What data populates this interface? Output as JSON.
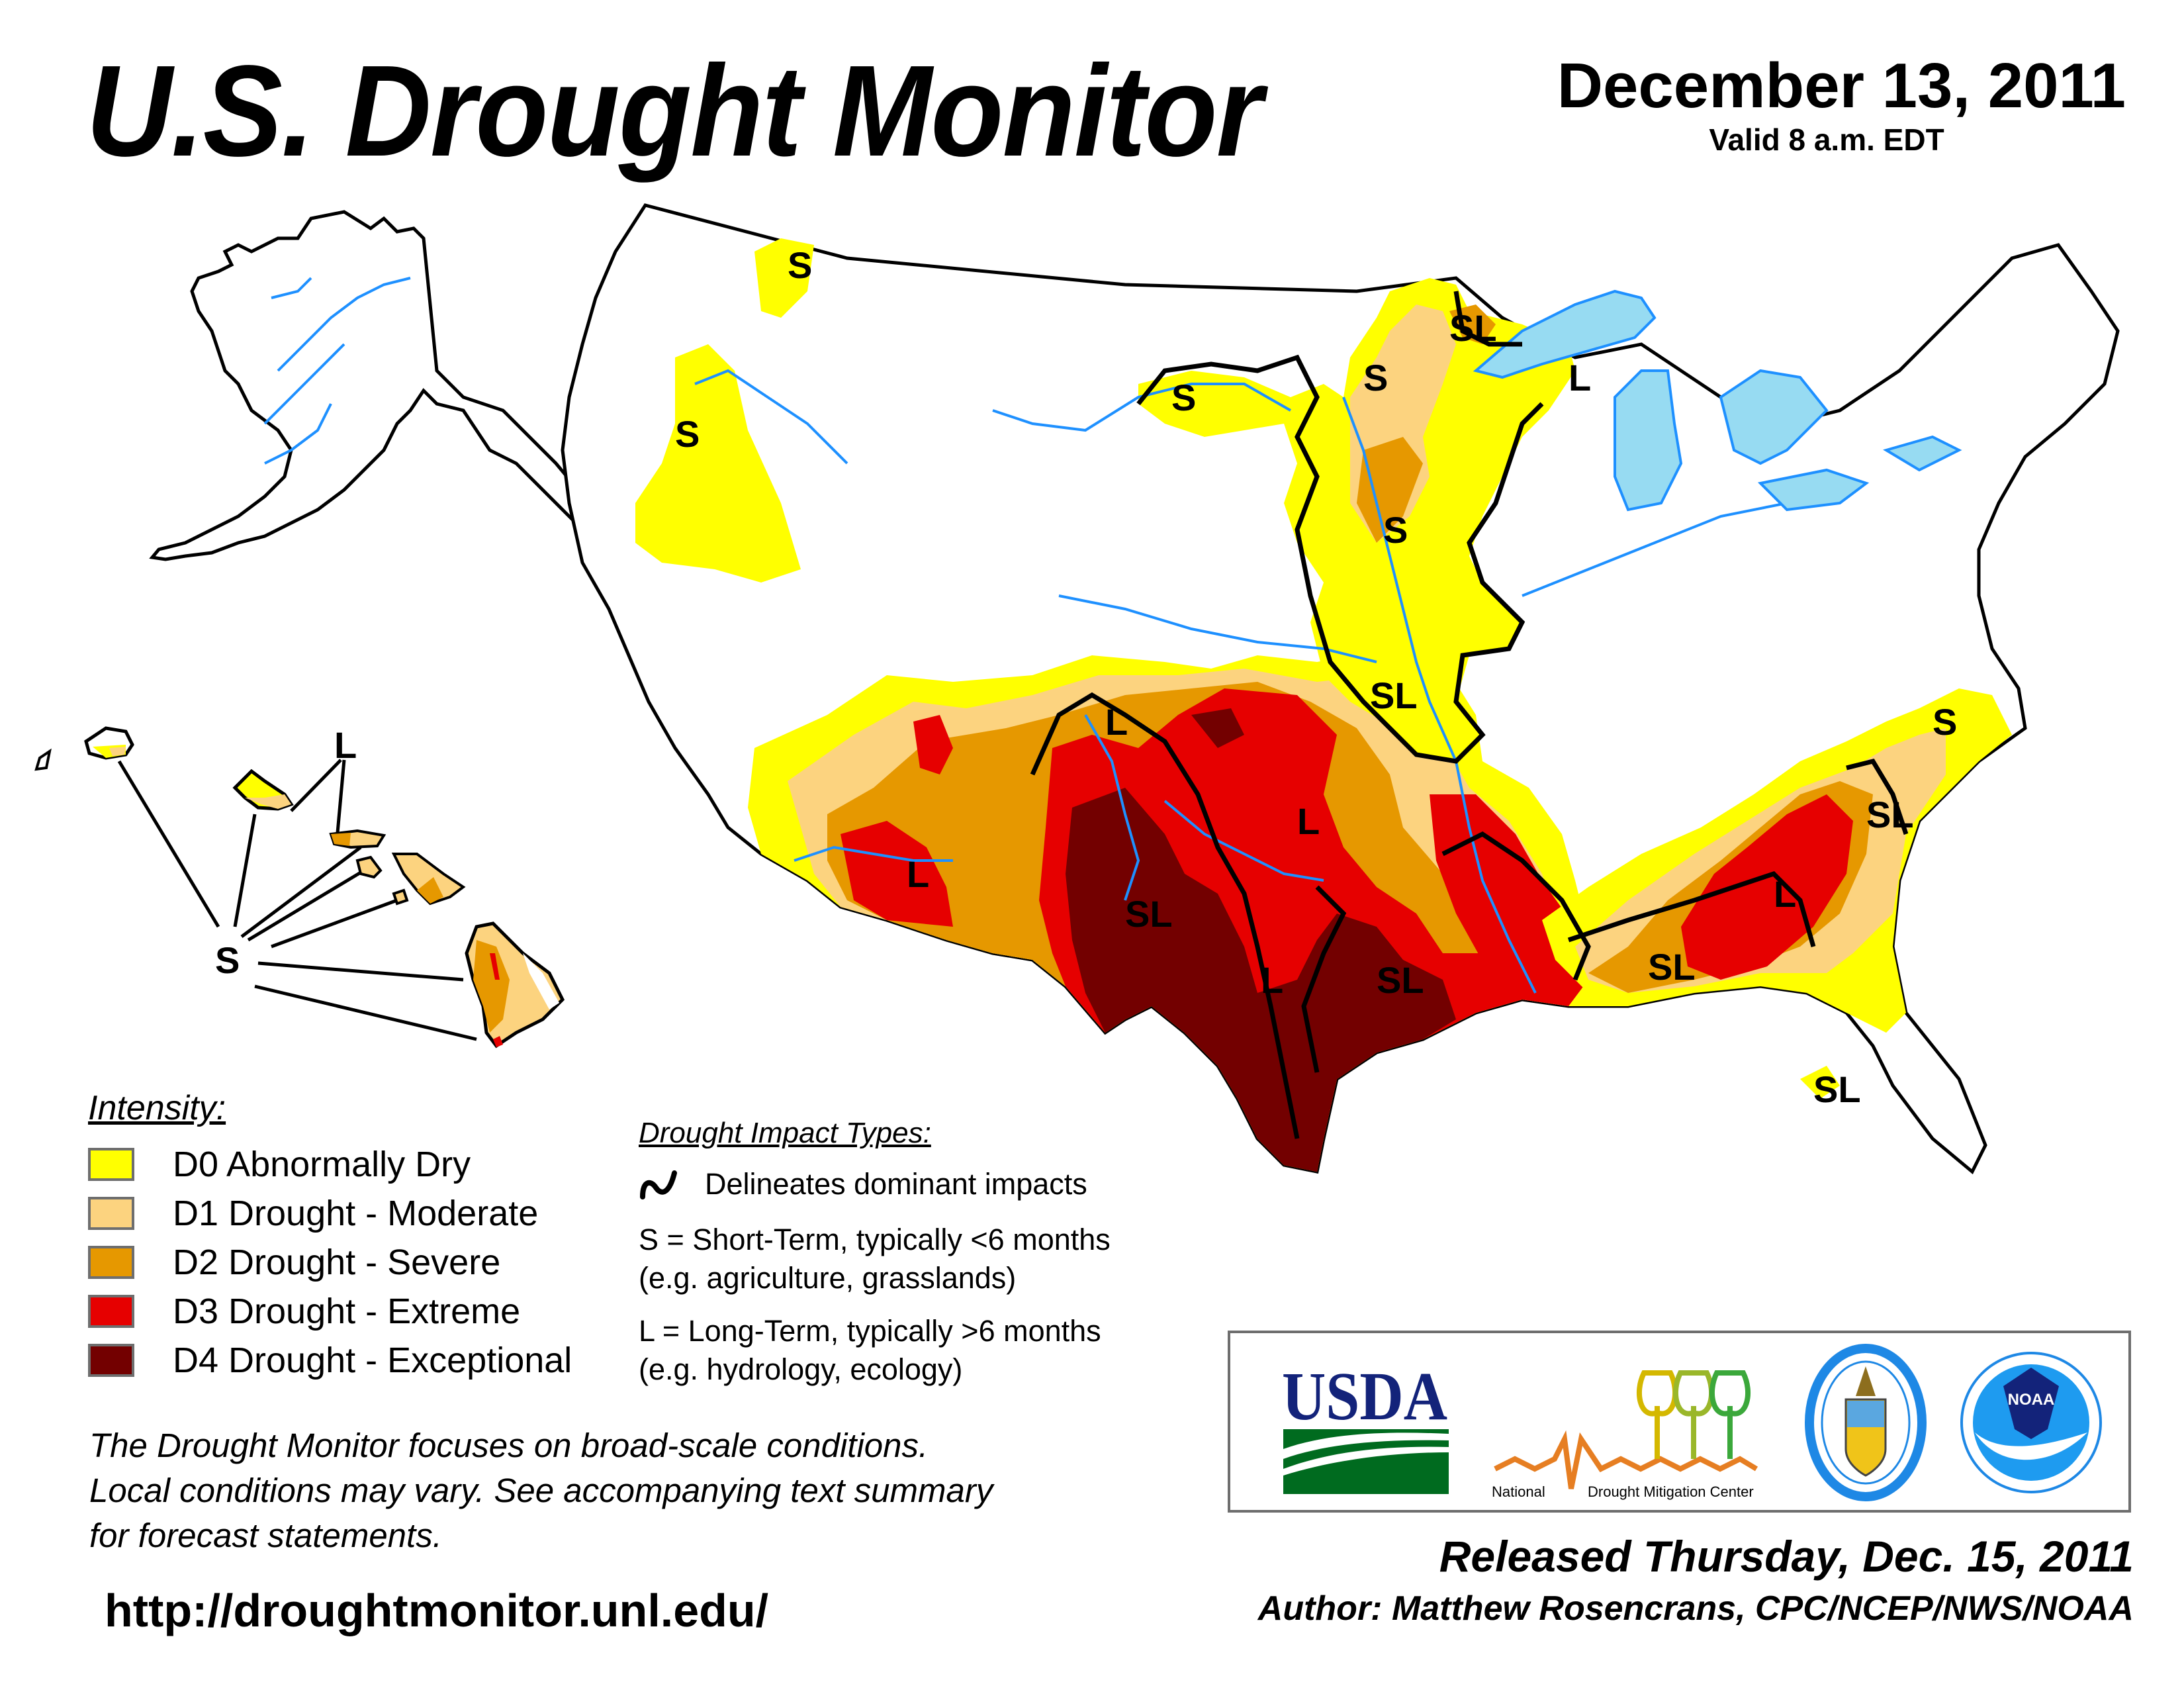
{
  "header": {
    "title": "U.S. Drought Monitor",
    "date": "December 13, 2011",
    "valid": "Valid 8 a.m. EDT"
  },
  "legend": {
    "heading": "Intensity:",
    "items": [
      {
        "label": "D0 Abnormally Dry",
        "color": "#ffff00"
      },
      {
        "label": "D1 Drought - Moderate",
        "color": "#fcd37f"
      },
      {
        "label": "D2 Drought - Severe",
        "color": "#e69800"
      },
      {
        "label": "D3 Drought - Extreme",
        "color": "#e60000"
      },
      {
        "label": "D4 Drought - Exceptional",
        "color": "#730000"
      }
    ]
  },
  "impact_types": {
    "heading": "Drought Impact Types:",
    "delineates": "Delineates dominant impacts",
    "short_term_line1": "S = Short-Term, typically <6 months",
    "short_term_line2": "(e.g. agriculture, grasslands)",
    "long_term_line1": "L = Long-Term, typically >6 months",
    "long_term_line2": "(e.g. hydrology, ecology)"
  },
  "map_labels": {
    "hawaii_s": "S",
    "hawaii_l": "L",
    "idaho": "S",
    "oregon": "S",
    "dakotas": "S",
    "minnesota_north": "S",
    "arrowhead": "SL",
    "wisconsin": "L",
    "iowa": "S",
    "missouri": "SL",
    "new_mexico_north": "L",
    "arizona": "L",
    "oklahoma": "L",
    "west_texas": "SL",
    "central_texas": "L",
    "east_texas": "SL",
    "gulf_coast": "SL",
    "georgia": "L",
    "carolinas": "SL",
    "virginia_coast": "S",
    "florida": "SL"
  },
  "map_colors": {
    "water": "#97dbf2",
    "rivers": "#1e90ff",
    "county_lines": "#b2b2b2",
    "state_lines": "#000000"
  },
  "logos": {
    "usda": "USDA",
    "ndmc_left": "National",
    "ndmc_right": "Drought Mitigation Center",
    "noaa": "NOAA"
  },
  "footer": {
    "disclaimer_line1": "The Drought Monitor focuses on broad-scale conditions.",
    "disclaimer_line2": "Local conditions may vary. See accompanying text summary",
    "disclaimer_line3": "for forecast statements.",
    "url": "http://droughtmonitor.unl.edu/",
    "released": "Released Thursday, Dec. 15, 2011",
    "author": "Author: Matthew Rosencrans, CPC/NCEP/NWS/NOAA"
  }
}
